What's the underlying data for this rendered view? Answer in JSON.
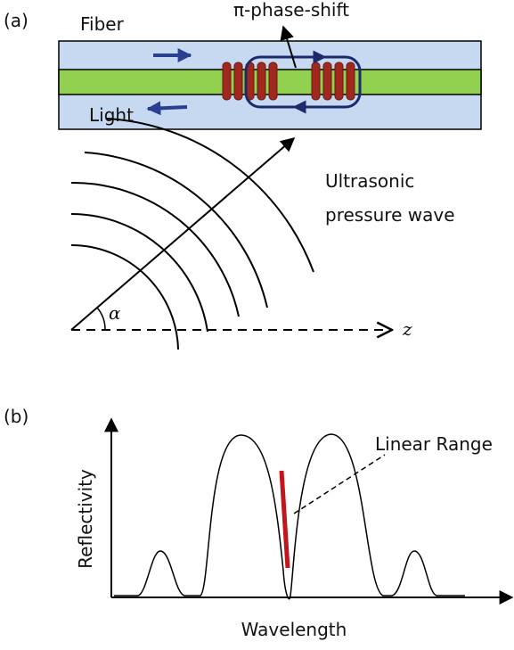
{
  "panel_a": {
    "label": "(a)",
    "fiber_label": "Fiber",
    "phase_shift_label": "π-phase-shift",
    "light_label": "Light",
    "wave_label_line1": "Ultrasonic",
    "wave_label_line2": "pressure wave",
    "angle_label": "α",
    "axis_label": "z"
  },
  "panel_b": {
    "label": "(b)",
    "annotation": "Linear Range",
    "y_axis_label": "Reflectivity",
    "x_axis_label": "Wavelength"
  }
}
